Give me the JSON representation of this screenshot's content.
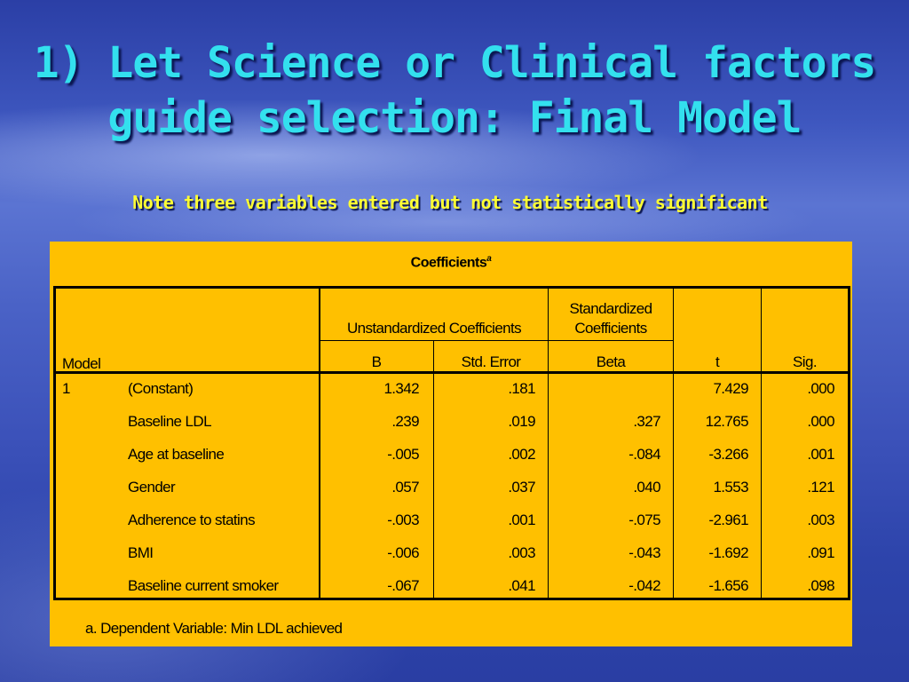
{
  "slide": {
    "title_line1": "1) Let Science or Clinical factors",
    "title_line2": "guide selection: Final Model",
    "subtitle": "Note three variables entered but not statistically significant"
  },
  "table": {
    "caption": "Coefficients",
    "caption_superscript": "a",
    "header": {
      "model": "Model",
      "unstd": "Unstandardized Coefficients",
      "std_line1": "Standardized",
      "std_line2": "Coefficients",
      "b": "B",
      "se": "Std. Error",
      "beta": "Beta",
      "t": "t",
      "sig": "Sig."
    },
    "model_number": "1",
    "rows": [
      {
        "label": "(Constant)",
        "b": "1.342",
        "se": ".181",
        "beta": "",
        "t": "7.429",
        "sig": ".000"
      },
      {
        "label": "Baseline LDL",
        "b": ".239",
        "se": ".019",
        "beta": ".327",
        "t": "12.765",
        "sig": ".000"
      },
      {
        "label": "Age at baseline",
        "b": "-.005",
        "se": ".002",
        "beta": "-.084",
        "t": "-3.266",
        "sig": ".001"
      },
      {
        "label": "Gender",
        "b": ".057",
        "se": ".037",
        "beta": ".040",
        "t": "1.553",
        "sig": ".121"
      },
      {
        "label": "Adherence to statins",
        "b": "-.003",
        "se": ".001",
        "beta": "-.075",
        "t": "-2.961",
        "sig": ".003"
      },
      {
        "label": "BMI",
        "b": "-.006",
        "se": ".003",
        "beta": "-.043",
        "t": "-1.692",
        "sig": ".091"
      },
      {
        "label": "Baseline current smoker",
        "b": "-.067",
        "se": ".041",
        "beta": "-.042",
        "t": "-1.656",
        "sig": ".098"
      }
    ],
    "footnote": "a. Dependent Variable: Min LDL achieved"
  },
  "colors": {
    "title": "#33e0ee",
    "subtitle": "#ffff33",
    "panel": "#ffc000"
  }
}
